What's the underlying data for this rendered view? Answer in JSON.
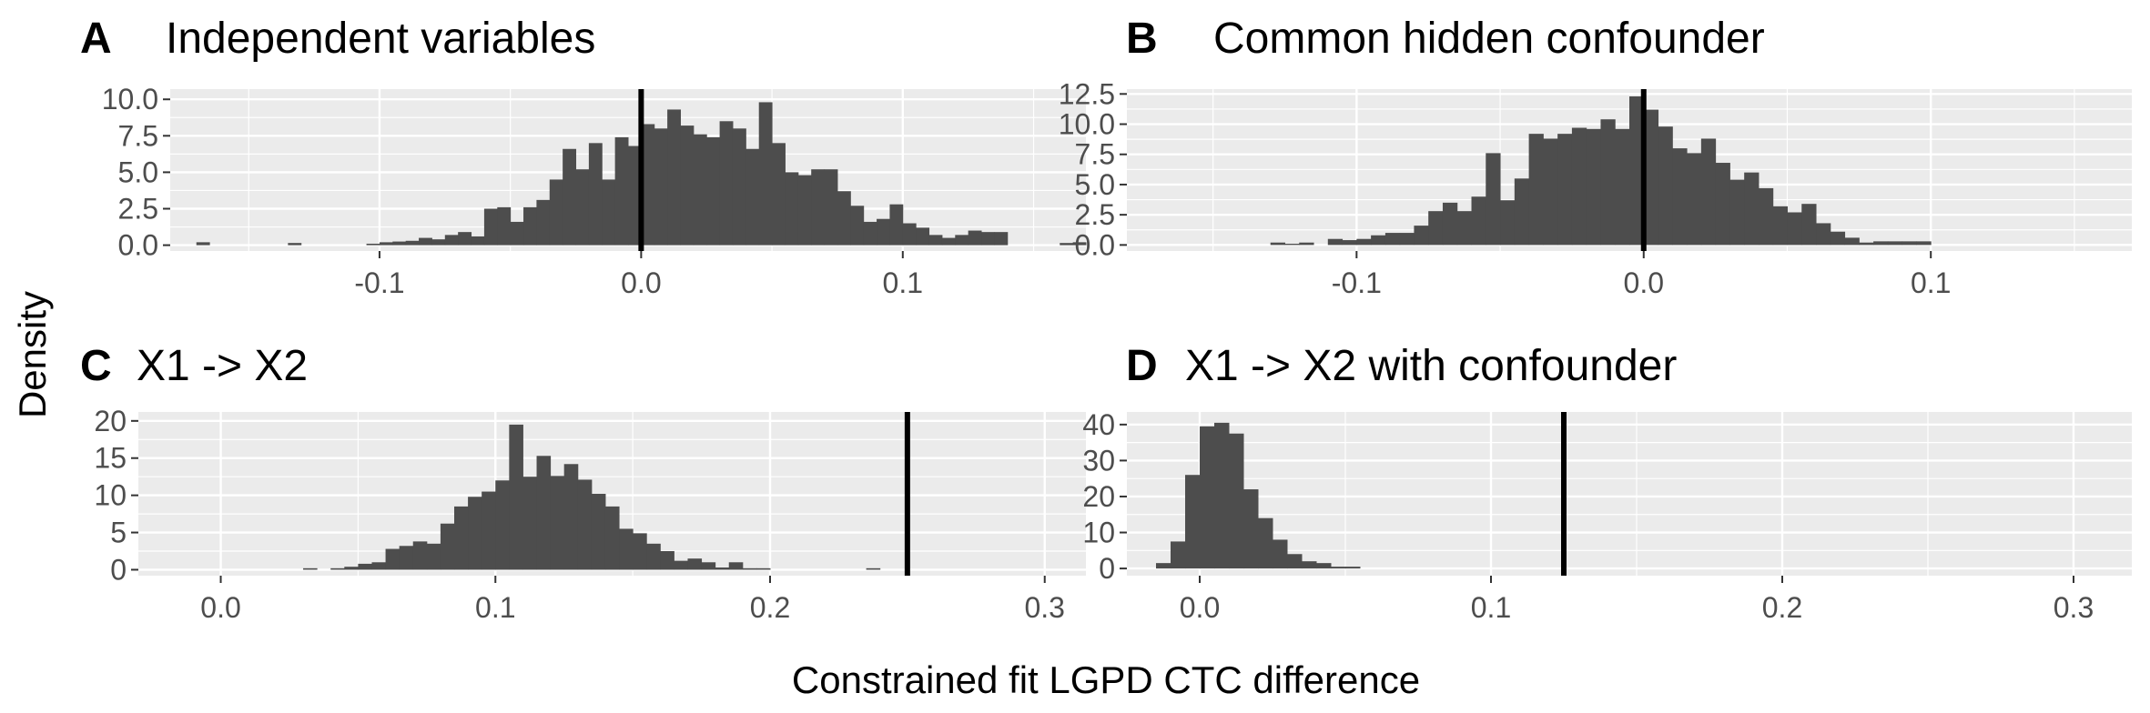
{
  "figure": {
    "xlabel": "Constrained fit LGPD CTC difference",
    "ylabel": "Density"
  },
  "colors": {
    "panel_bg": "#ebebeb",
    "grid": "#ffffff",
    "bars": "#4d4d4d",
    "reference_line": "#000000",
    "tick_text": "#4d4d4d"
  },
  "chart_data": [
    {
      "type": "bar",
      "letter": "A",
      "title": "Independent variables",
      "xlim": [
        -0.18,
        0.17
      ],
      "ylim": [
        -0.4,
        10.7
      ],
      "xticks": [
        -0.1,
        0.0,
        0.1
      ],
      "xtick_labels": [
        "-0.1",
        "0.0",
        "0.1"
      ],
      "yticks": [
        0,
        2.5,
        5,
        7.5,
        10
      ],
      "ytick_labels": [
        "0.0",
        "2.5",
        "5.0",
        "7.5",
        "10.0"
      ],
      "bin_width": 0.005,
      "bin_start": -0.17,
      "values": [
        0.2,
        0,
        0,
        0,
        0,
        0,
        0,
        0.15,
        0,
        0,
        0,
        0,
        0,
        0.1,
        0.2,
        0.25,
        0.3,
        0.5,
        0.4,
        0.7,
        0.9,
        0.6,
        2.5,
        2.6,
        1.6,
        2.6,
        3.1,
        4.5,
        6.6,
        5.2,
        7.0,
        4.5,
        7.4,
        6.8,
        8.3,
        8.0,
        9.3,
        8.2,
        7.6,
        7.4,
        8.5,
        8.0,
        6.6,
        9.8,
        7.0,
        5.0,
        4.8,
        5.2,
        5.2,
        3.7,
        2.7,
        1.6,
        1.8,
        2.8,
        1.5,
        1.2,
        0.7,
        0.5,
        0.7,
        1.0,
        0.9,
        0.9,
        0,
        0,
        0,
        0,
        0.15,
        0.2
      ],
      "reference_line": 0.0
    },
    {
      "type": "bar",
      "letter": "B",
      "title": "Common hidden confounder",
      "xlim": [
        -0.18,
        0.17
      ],
      "ylim": [
        -0.5,
        12.9
      ],
      "xticks": [
        -0.1,
        0.0,
        0.1
      ],
      "xtick_labels": [
        "-0.1",
        "0.0",
        "0.1"
      ],
      "yticks": [
        0,
        2.5,
        5,
        7.5,
        10,
        12.5
      ],
      "ytick_labels": [
        "0.0",
        "2.5",
        "5.0",
        "7.5",
        "10.0",
        "12.5"
      ],
      "bin_width": 0.005,
      "bin_start": -0.13,
      "values": [
        0.2,
        0.1,
        0.2,
        0,
        0.5,
        0.4,
        0.5,
        0.8,
        1.0,
        1.0,
        1.6,
        2.8,
        3.5,
        2.8,
        4.0,
        7.6,
        3.7,
        5.5,
        9.2,
        8.8,
        9.2,
        9.7,
        9.6,
        10.4,
        9.6,
        12.3,
        11.2,
        9.8,
        8.0,
        7.6,
        8.8,
        6.8,
        5.4,
        6.0,
        4.7,
        3.2,
        2.7,
        3.4,
        1.8,
        1.1,
        0.6,
        0.2,
        0.3,
        0.3,
        0.3,
        0.3
      ],
      "reference_line": 0.0
    },
    {
      "type": "bar",
      "letter": "C",
      "title": "X1 -> X2",
      "xlim": [
        -0.03,
        0.315
      ],
      "ylim": [
        -0.8,
        21.2
      ],
      "xticks": [
        0.0,
        0.1,
        0.2,
        0.3
      ],
      "xtick_labels": [
        "0.0",
        "0.1",
        "0.2",
        "0.3"
      ],
      "yticks": [
        0,
        5,
        10,
        15,
        20
      ],
      "ytick_labels": [
        "0",
        "5",
        "10",
        "15",
        "20"
      ],
      "bin_width": 0.005,
      "bin_start": 0.03,
      "values": [
        0.2,
        0,
        0.2,
        0.4,
        0.8,
        1.0,
        2.8,
        3.2,
        3.8,
        3.5,
        6.2,
        8.5,
        9.8,
        10.5,
        12.0,
        19.5,
        12.5,
        15.3,
        12.6,
        14.2,
        12.1,
        10.2,
        8.5,
        5.5,
        4.9,
        3.5,
        2.5,
        1.2,
        1.5,
        1.0,
        0.3,
        1.0,
        0.2,
        0.2,
        0,
        0,
        0,
        0,
        0,
        0,
        0,
        0.2
      ],
      "reference_line": 0.25
    },
    {
      "type": "bar",
      "letter": "D",
      "title": "X1 -> X2 with confounder",
      "xlim": [
        -0.025,
        0.32
      ],
      "ylim": [
        -2.0,
        43.5
      ],
      "xticks": [
        0.0,
        0.1,
        0.2,
        0.3
      ],
      "xtick_labels": [
        "0.0",
        "0.1",
        "0.2",
        "0.3"
      ],
      "yticks": [
        0,
        10,
        20,
        30,
        40
      ],
      "ytick_labels": [
        "0",
        "10",
        "20",
        "30",
        "40"
      ],
      "bin_width": 0.005,
      "bin_start": -0.015,
      "values": [
        1.5,
        7.5,
        26.0,
        39.5,
        40.5,
        37.5,
        22.0,
        14.0,
        8.0,
        4.0,
        2.0,
        1.5,
        0.5,
        0.5
      ],
      "reference_line": 0.125
    }
  ]
}
